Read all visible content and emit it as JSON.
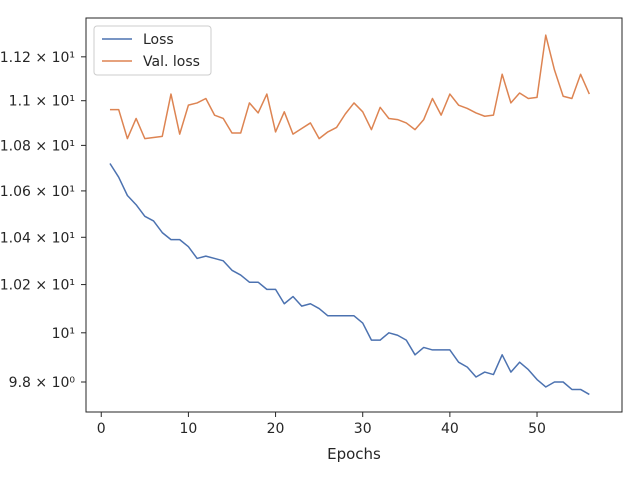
{
  "chart_data": {
    "type": "line",
    "title": "",
    "xlabel": "Epochs",
    "ylabel": "",
    "yscale": "log",
    "xlim": [
      -1.75,
      59.75
    ],
    "ylim": [
      9.68,
      11.38
    ],
    "grid": false,
    "legend_placement": "top-left",
    "x_ticks": [
      0,
      10,
      20,
      30,
      40,
      50
    ],
    "x_tick_labels": [
      "0",
      "10",
      "20",
      "30",
      "40",
      "50"
    ],
    "y_ticks": [
      9.8,
      10.0,
      10.2,
      10.4,
      10.6,
      10.8,
      11.0,
      11.2
    ],
    "y_tick_labels": [
      "9.8 × 10⁰",
      "10¹",
      "1.02 × 10¹",
      "1.04 × 10¹",
      "1.06 × 10¹",
      "1.08 × 10¹",
      "1.1 × 10¹",
      "1.12 × 10¹"
    ],
    "x": [
      1,
      2,
      3,
      4,
      5,
      6,
      7,
      8,
      9,
      10,
      11,
      12,
      13,
      14,
      15,
      16,
      17,
      18,
      19,
      20,
      21,
      22,
      23,
      24,
      25,
      26,
      27,
      28,
      29,
      30,
      31,
      32,
      33,
      34,
      35,
      36,
      37,
      38,
      39,
      40,
      41,
      42,
      43,
      44,
      45,
      46,
      47,
      48,
      49,
      50,
      51,
      52,
      53,
      54,
      55,
      56
    ],
    "series": [
      {
        "name": "Loss",
        "color": "#4c72b0",
        "values": [
          10.72,
          10.66,
          10.58,
          10.54,
          10.49,
          10.47,
          10.42,
          10.39,
          10.39,
          10.36,
          10.31,
          10.32,
          10.31,
          10.3,
          10.26,
          10.24,
          10.21,
          10.21,
          10.18,
          10.18,
          10.12,
          10.15,
          10.11,
          10.12,
          10.1,
          10.07,
          10.07,
          10.07,
          10.07,
          10.04,
          9.97,
          9.97,
          10.0,
          9.99,
          9.97,
          9.91,
          9.94,
          9.93,
          9.93,
          9.93,
          9.88,
          9.86,
          9.82,
          9.84,
          9.83,
          9.91,
          9.84,
          9.88,
          9.85,
          9.81,
          9.78,
          9.8,
          9.8,
          9.77,
          9.77,
          9.75
        ]
      },
      {
        "name": "Val. loss",
        "color": "#dd8452",
        "values": [
          10.96,
          10.96,
          10.83,
          10.92,
          10.83,
          10.835,
          10.84,
          11.03,
          10.85,
          10.98,
          10.99,
          11.01,
          10.935,
          10.92,
          10.855,
          10.855,
          10.99,
          10.945,
          11.03,
          10.86,
          10.95,
          10.85,
          10.875,
          10.9,
          10.83,
          10.86,
          10.88,
          10.94,
          10.99,
          10.95,
          10.87,
          10.97,
          10.92,
          10.915,
          10.9,
          10.87,
          10.915,
          11.01,
          10.935,
          11.03,
          10.98,
          10.965,
          10.945,
          10.93,
          10.935,
          11.12,
          10.99,
          11.035,
          11.01,
          11.015,
          11.3,
          11.14,
          11.02,
          11.01,
          11.12,
          11.03
        ]
      }
    ]
  }
}
